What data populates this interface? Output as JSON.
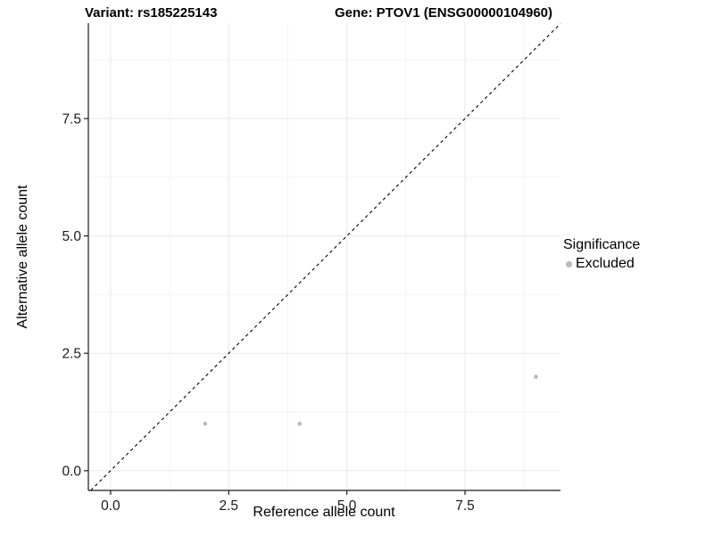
{
  "chart_data": {
    "type": "scatter",
    "title_left": "Variant: rs185225143",
    "title_right": "Gene: PTOV1 (ENSG00000104960)",
    "xlabel": "Reference allele count",
    "ylabel": "Alternative allele count",
    "xlim": [
      -0.47,
      9.52
    ],
    "ylim": [
      -0.42,
      9.53
    ],
    "x_ticks": {
      "values": [
        0,
        2.5,
        5,
        7.5
      ],
      "labels": [
        "0.0",
        "2.5",
        "5.0",
        "7.5"
      ]
    },
    "y_ticks": {
      "values": [
        0,
        2.5,
        5,
        7.5
      ],
      "labels": [
        "0.0",
        "2.5",
        "5.0",
        "7.5"
      ]
    },
    "minor_tick_values": [
      1.25,
      3.75,
      6.25,
      8.75
    ],
    "grid": true,
    "identity_line": {
      "style": "dashed",
      "color": "#000000"
    },
    "series": [
      {
        "name": "Excluded",
        "color": "#b9b9b9",
        "points": [
          {
            "x": 2,
            "y": 1
          },
          {
            "x": 4,
            "y": 1
          },
          {
            "x": 9,
            "y": 2
          }
        ]
      }
    ],
    "legend": {
      "title": "Significance",
      "position": "right",
      "items": [
        {
          "label": "Excluded",
          "color": "#b9b9b9"
        }
      ]
    },
    "style": {
      "major_grid_color": "#e7e7e7",
      "minor_grid_color": "#f2f2f2",
      "axis_line_color": "#1a1a1a",
      "tick_label_color": "#1a1a1a",
      "point_radius": 2.3
    }
  }
}
